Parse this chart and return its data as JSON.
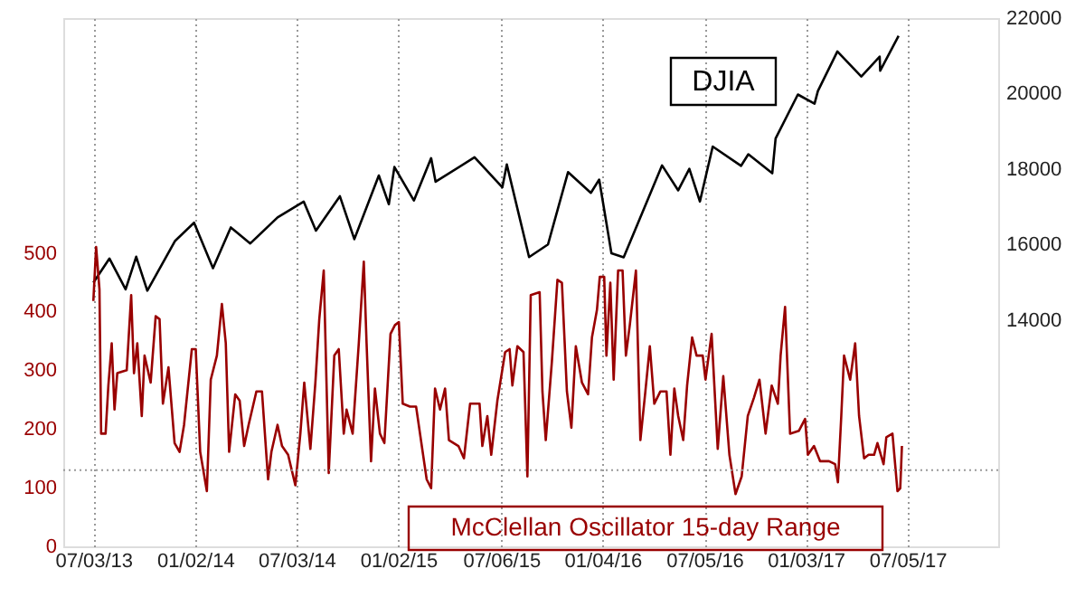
{
  "chart_data": {
    "type": "line",
    "xlim": [
      "2013-05-10",
      "2017-12-15"
    ],
    "xticks": [
      {
        "value": "2013-07-03",
        "label": "07/03/13"
      },
      {
        "value": "2014-01-02",
        "label": "01/02/14"
      },
      {
        "value": "2014-07-03",
        "label": "07/03/14"
      },
      {
        "value": "2015-01-02",
        "label": "01/02/15"
      },
      {
        "value": "2015-07-06",
        "label": "07/06/15"
      },
      {
        "value": "2016-01-04",
        "label": "01/04/16"
      },
      {
        "value": "2016-07-05",
        "label": "07/05/16"
      },
      {
        "value": "2017-01-03",
        "label": "01/03/17"
      },
      {
        "value": "2017-07-05",
        "label": "07/05/17"
      }
    ],
    "ylim": [
      0,
      900
    ],
    "yticks": [
      0,
      100,
      200,
      300,
      400,
      500
    ],
    "y2lim": [
      8000,
      22000
    ],
    "y2ticks": [
      14000,
      16000,
      18000,
      20000,
      22000
    ],
    "grid": "x",
    "legend": false,
    "line_style": "solid",
    "marker": "none",
    "ref_lines": [
      {
        "axis": "y",
        "value": 130,
        "color": "#999999",
        "line_style": "dotted"
      }
    ],
    "series": [
      {
        "name": "DJIA",
        "color": "#000000",
        "axis": "y2",
        "x": [
          "2013-07-03",
          "2013-08-01",
          "2013-08-30",
          "2013-09-18",
          "2013-10-08",
          "2013-11-27",
          "2013-12-31",
          "2014-02-03",
          "2014-03-07",
          "2014-04-11",
          "2014-05-30",
          "2014-07-16",
          "2014-08-07",
          "2014-09-19",
          "2014-10-15",
          "2014-11-28",
          "2014-12-16",
          "2014-12-26",
          "2015-01-30",
          "2015-03-02",
          "2015-03-10",
          "2015-05-19",
          "2015-07-08",
          "2015-07-16",
          "2015-08-25",
          "2015-09-28",
          "2015-11-03",
          "2015-12-14",
          "2015-12-29",
          "2016-01-20",
          "2016-02-11",
          "2016-04-20",
          "2016-05-19",
          "2016-06-08",
          "2016-06-27",
          "2016-07-20",
          "2016-09-09",
          "2016-09-22",
          "2016-11-04",
          "2016-11-10",
          "2016-12-20",
          "2017-01-19",
          "2017-01-25",
          "2017-03-01",
          "2017-04-13",
          "2017-05-16",
          "2017-05-17",
          "2017-06-19"
        ],
        "values": [
          14988,
          15628,
          14810,
          15676,
          14776,
          16097,
          16577,
          15372,
          16452,
          16027,
          16717,
          17138,
          16368,
          17280,
          16141,
          17828,
          17068,
          18053,
          17165,
          18288,
          17662,
          18312,
          17515,
          18120,
          15666,
          16001,
          17918,
          17368,
          17720,
          15766,
          15660,
          18096,
          17435,
          18005,
          17140,
          18595,
          18085,
          18392,
          17888,
          18807,
          19974,
          19732,
          20068,
          21115,
          20453,
          20980,
          20606,
          21528
        ]
      },
      {
        "name": "McClellan Oscillator 15-day Range",
        "color": "#990000",
        "axis": "y",
        "x": [
          "2013-07-03",
          "2013-07-08",
          "2013-07-14",
          "2013-07-17",
          "2013-07-25",
          "2013-07-30",
          "2013-08-05",
          "2013-08-10",
          "2013-08-15",
          "2013-09-01",
          "2013-09-09",
          "2013-09-14",
          "2013-09-20",
          "2013-09-28",
          "2013-10-03",
          "2013-10-14",
          "2013-10-23",
          "2013-10-30",
          "2013-11-05",
          "2013-11-15",
          "2013-11-26",
          "2013-12-05",
          "2013-12-13",
          "2013-12-27",
          "2014-01-03",
          "2014-01-11",
          "2014-01-23",
          "2014-01-30",
          "2014-02-10",
          "2014-02-19",
          "2014-02-26",
          "2014-03-04",
          "2014-03-15",
          "2014-03-23",
          "2014-03-31",
          "2014-04-08",
          "2014-04-22",
          "2014-05-02",
          "2014-05-13",
          "2014-05-19",
          "2014-05-30",
          "2014-06-07",
          "2014-06-18",
          "2014-07-01",
          "2014-07-10",
          "2014-07-17",
          "2014-07-28",
          "2014-08-06",
          "2014-08-13",
          "2014-08-21",
          "2014-08-30",
          "2014-09-09",
          "2014-09-17",
          "2014-09-26",
          "2014-10-01",
          "2014-10-12",
          "2014-10-23",
          "2014-11-01",
          "2014-11-06",
          "2014-11-14",
          "2014-11-21",
          "2014-11-30",
          "2014-12-08",
          "2014-12-19",
          "2014-12-27",
          "2015-01-03",
          "2015-01-10",
          "2015-01-23",
          "2015-02-03",
          "2015-02-14",
          "2015-02-22",
          "2015-03-02",
          "2015-03-09",
          "2015-03-18",
          "2015-03-27",
          "2015-04-03",
          "2015-04-20",
          "2015-04-30",
          "2015-05-11",
          "2015-05-28",
          "2015-06-02",
          "2015-06-11",
          "2015-06-18",
          "2015-06-29",
          "2015-07-13",
          "2015-07-21",
          "2015-07-26",
          "2015-08-04",
          "2015-08-15",
          "2015-08-22",
          "2015-08-28",
          "2015-09-13",
          "2015-09-18",
          "2015-09-24",
          "2015-10-05",
          "2015-10-15",
          "2015-10-23",
          "2015-11-01",
          "2015-11-09",
          "2015-11-17",
          "2015-11-28",
          "2015-12-09",
          "2015-12-16",
          "2015-12-25",
          "2015-12-30",
          "2016-01-07",
          "2016-01-11",
          "2016-01-18",
          "2016-01-24",
          "2016-02-01",
          "2016-02-09",
          "2016-02-15",
          "2016-02-22",
          "2016-03-04",
          "2016-03-12",
          "2016-03-21",
          "2016-03-29",
          "2016-04-06",
          "2016-04-17",
          "2016-04-28",
          "2016-05-05",
          "2016-05-12",
          "2016-05-19",
          "2016-05-28",
          "2016-06-04",
          "2016-06-13",
          "2016-06-21",
          "2016-07-02",
          "2016-07-07",
          "2016-07-18",
          "2016-07-29",
          "2016-08-08",
          "2016-08-19",
          "2016-08-30",
          "2016-09-10",
          "2016-09-21",
          "2016-10-02",
          "2016-10-12",
          "2016-10-23",
          "2016-11-03",
          "2016-11-14",
          "2016-11-19",
          "2016-11-27",
          "2016-12-06",
          "2016-12-22",
          "2017-01-02",
          "2017-01-07",
          "2017-01-18",
          "2017-01-29",
          "2017-02-14",
          "2017-02-25",
          "2017-03-02",
          "2017-03-08",
          "2017-03-13",
          "2017-03-24",
          "2017-04-02",
          "2017-04-09",
          "2017-04-18",
          "2017-04-26",
          "2017-05-06",
          "2017-05-12",
          "2017-05-23",
          "2017-05-28",
          "2017-06-08",
          "2017-06-17",
          "2017-06-22",
          "2017-06-25"
        ],
        "values": [
          418,
          510,
          438,
          192,
          192,
          274,
          346,
          233,
          295,
          300,
          428,
          295,
          346,
          222,
          325,
          279,
          392,
          387,
          243,
          305,
          176,
          161,
          207,
          336,
          336,
          161,
          94,
          284,
          325,
          413,
          346,
          161,
          259,
          248,
          171,
          207,
          264,
          264,
          114,
          161,
          207,
          171,
          156,
          104,
          192,
          279,
          166,
          279,
          387,
          470,
          125,
          325,
          336,
          192,
          233,
          192,
          346,
          485,
          346,
          145,
          269,
          192,
          176,
          362,
          377,
          382,
          243,
          238,
          238,
          166,
          114,
          99,
          269,
          233,
          269,
          181,
          171,
          150,
          243,
          243,
          171,
          222,
          156,
          248,
          331,
          336,
          274,
          341,
          331,
          119,
          428,
          433,
          264,
          181,
          315,
          454,
          449,
          264,
          202,
          341,
          279,
          259,
          356,
          403,
          459,
          459,
          325,
          449,
          284,
          470,
          470,
          325,
          377,
          470,
          181,
          264,
          341,
          243,
          264,
          264,
          156,
          269,
          222,
          181,
          274,
          356,
          325,
          325,
          284,
          362,
          166,
          290,
          156,
          89,
          119,
          222,
          253,
          284,
          192,
          274,
          243,
          325,
          408,
          192,
          197,
          217,
          156,
          171,
          145,
          145,
          140,
          109,
          222,
          325,
          284,
          346,
          222,
          150,
          156,
          156,
          176,
          140,
          186,
          192,
          94,
          99,
          171
        ]
      }
    ]
  }
}
